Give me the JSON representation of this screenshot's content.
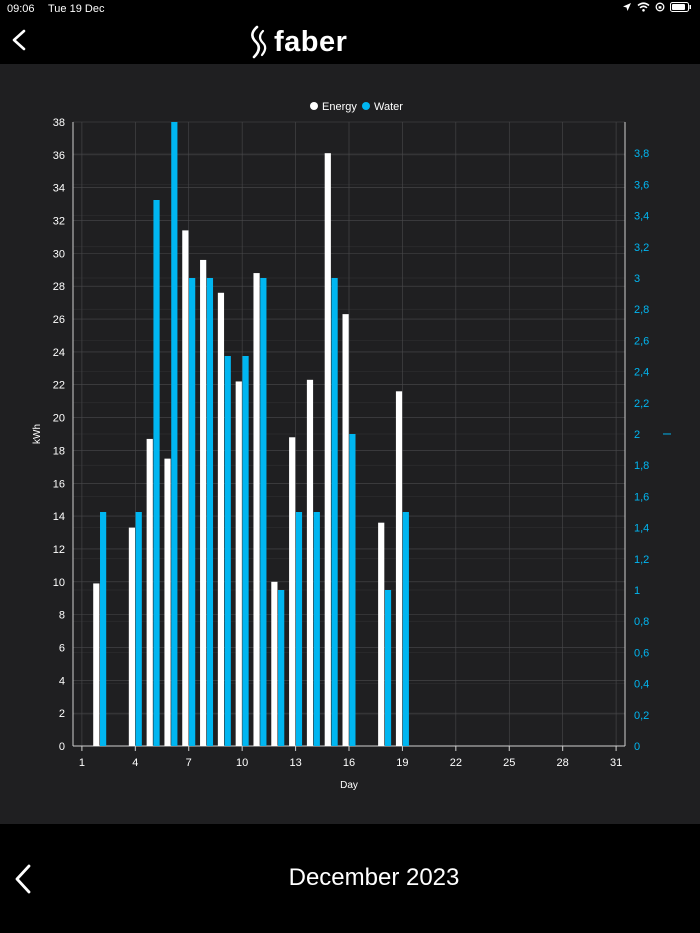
{
  "status_bar": {
    "time": "09:06",
    "date": "Tue 19 Dec"
  },
  "header": {
    "logo_text": "faber",
    "back_icon": "chevron-left-icon"
  },
  "footer": {
    "month_label": "December 2023",
    "back_icon": "chevron-left-icon"
  },
  "colors": {
    "energy": "#ffffff",
    "water": "#00b6f1",
    "background": "#1f1f21",
    "grid": "#4a4a4c"
  },
  "chart_data": {
    "type": "bar",
    "title": "",
    "xlabel": "Day",
    "ylabel": "kWh",
    "y2label": "l",
    "legend_position": "top-center",
    "grid": true,
    "xlim": [
      1,
      31
    ],
    "ylim": [
      0,
      38
    ],
    "y2lim": [
      0,
      4
    ],
    "x_ticks": [
      1,
      4,
      7,
      10,
      13,
      16,
      19,
      22,
      25,
      28,
      31
    ],
    "y_ticks": [
      0,
      2,
      4,
      6,
      8,
      10,
      12,
      14,
      16,
      18,
      20,
      22,
      24,
      26,
      28,
      30,
      32,
      34,
      36,
      38
    ],
    "y2_ticks": [
      "0",
      "0,2",
      "0,4",
      "0,6",
      "0,8",
      "1",
      "1,2",
      "1,4",
      "1,6",
      "1,8",
      "2",
      "2,2",
      "2,4",
      "2,6",
      "2,8",
      "3",
      "3,2",
      "3,4",
      "3,6",
      "3,8"
    ],
    "x": [
      1,
      2,
      3,
      4,
      5,
      6,
      7,
      8,
      9,
      10,
      11,
      12,
      13,
      14,
      15,
      16,
      17,
      18,
      19
    ],
    "series": [
      {
        "name": "Energy",
        "axis": "left",
        "values": [
          0,
          9.9,
          0,
          13.3,
          18.7,
          17.5,
          31.4,
          29.6,
          27.6,
          22.2,
          28.8,
          10.0,
          18.8,
          22.3,
          36.1,
          26.3,
          0,
          13.6,
          21.6
        ]
      },
      {
        "name": "Water",
        "axis": "right",
        "values": [
          0,
          1.5,
          0,
          1.5,
          3.5,
          4.0,
          3.0,
          3.0,
          2.5,
          2.5,
          3.0,
          1.0,
          1.5,
          1.5,
          3.0,
          2.0,
          0,
          1.0,
          1.5
        ]
      }
    ]
  }
}
